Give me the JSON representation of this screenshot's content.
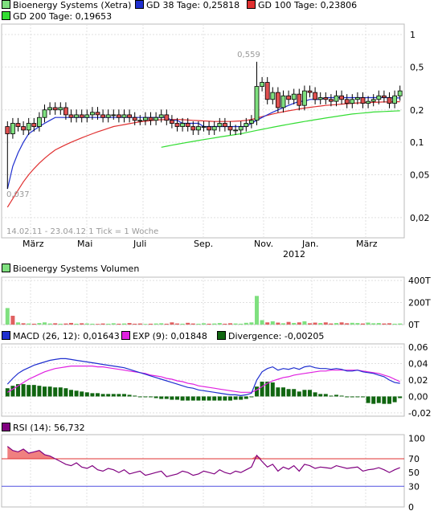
{
  "chart_data": [
    {
      "type": "candlestick",
      "legend": [
        {
          "label": "Bioenergy Systems (Xetra)",
          "color": "#7fe07f"
        },
        {
          "label": "GD 38 Tage: 0,25818",
          "color": "#1f2fcf"
        },
        {
          "label": "GD 100 Tage: 0,23806",
          "color": "#e03030"
        },
        {
          "label": "GD 200 Tage: 0,19653",
          "color": "#33dd33"
        }
      ],
      "y_scale": "log",
      "y_ticks": [
        "1",
        "0,5",
        "0,2",
        "0,1",
        "0,05",
        "0,02"
      ],
      "y_tick_values": [
        1,
        0.5,
        0.2,
        0.1,
        0.05,
        0.02
      ],
      "x_ticks": [
        "März",
        "Mai",
        "Juli",
        "Sep.",
        "Nov.",
        "Jan.",
        "März"
      ],
      "x_year_label": "2012",
      "annotations": {
        "high": "0,559",
        "low": "0,037"
      },
      "footer": "14.02.11 - 23.04.12   1 Tick = 1 Woche",
      "closes": [
        0.12,
        0.15,
        0.14,
        0.13,
        0.15,
        0.14,
        0.17,
        0.2,
        0.21,
        0.2,
        0.21,
        0.18,
        0.17,
        0.18,
        0.17,
        0.18,
        0.19,
        0.18,
        0.17,
        0.18,
        0.18,
        0.17,
        0.18,
        0.17,
        0.16,
        0.16,
        0.17,
        0.16,
        0.17,
        0.18,
        0.16,
        0.15,
        0.14,
        0.15,
        0.14,
        0.13,
        0.14,
        0.14,
        0.13,
        0.14,
        0.15,
        0.14,
        0.13,
        0.13,
        0.14,
        0.15,
        0.16,
        0.33,
        0.36,
        0.25,
        0.29,
        0.21,
        0.27,
        0.25,
        0.28,
        0.22,
        0.3,
        0.29,
        0.25,
        0.26,
        0.25,
        0.24,
        0.27,
        0.25,
        0.23,
        0.25,
        0.26,
        0.23,
        0.24,
        0.25,
        0.27,
        0.26,
        0.23,
        0.27,
        0.3
      ],
      "opens": [
        0.14,
        0.12,
        0.15,
        0.14,
        0.13,
        0.15,
        0.14,
        0.17,
        0.2,
        0.21,
        0.2,
        0.21,
        0.18,
        0.17,
        0.18,
        0.17,
        0.18,
        0.19,
        0.18,
        0.17,
        0.18,
        0.18,
        0.17,
        0.18,
        0.17,
        0.16,
        0.16,
        0.17,
        0.16,
        0.17,
        0.18,
        0.16,
        0.15,
        0.14,
        0.15,
        0.14,
        0.13,
        0.14,
        0.14,
        0.13,
        0.14,
        0.15,
        0.14,
        0.13,
        0.13,
        0.14,
        0.15,
        0.16,
        0.33,
        0.36,
        0.25,
        0.29,
        0.21,
        0.27,
        0.25,
        0.28,
        0.22,
        0.3,
        0.29,
        0.25,
        0.26,
        0.25,
        0.24,
        0.27,
        0.25,
        0.23,
        0.25,
        0.26,
        0.23,
        0.24,
        0.25,
        0.27,
        0.26,
        0.23,
        0.27
      ],
      "gd38": [
        0.037,
        0.06,
        0.08,
        0.1,
        0.12,
        0.13,
        0.14,
        0.15,
        0.16,
        0.17,
        0.17,
        0.17,
        0.17,
        0.17,
        0.17,
        0.17,
        0.17,
        0.17,
        0.17,
        0.17,
        0.17,
        0.17,
        0.17,
        0.17,
        0.17,
        0.17,
        0.17,
        0.17,
        0.17,
        0.17,
        0.17,
        0.16,
        0.16,
        0.15,
        0.15,
        0.15,
        0.15,
        0.14,
        0.14,
        0.14,
        0.14,
        0.14,
        0.14,
        0.14,
        0.14,
        0.14,
        0.15,
        0.16,
        0.17,
        0.18,
        0.19,
        0.2,
        0.21,
        0.22,
        0.23,
        0.24,
        0.24,
        0.25,
        0.25,
        0.25,
        0.26,
        0.26,
        0.26,
        0.26,
        0.26,
        0.26,
        0.26,
        0.26,
        0.26,
        0.26,
        0.26,
        0.26,
        0.26,
        0.258,
        0.258
      ],
      "gd100": [
        0.025,
        0.03,
        0.036,
        0.043,
        0.05,
        0.057,
        0.064,
        0.071,
        0.078,
        0.085,
        0.09,
        0.095,
        0.1,
        0.105,
        0.11,
        0.115,
        0.12,
        0.125,
        0.13,
        0.135,
        0.14,
        0.143,
        0.146,
        0.149,
        0.152,
        0.155,
        0.157,
        0.159,
        0.161,
        0.162,
        0.163,
        0.163,
        0.163,
        0.162,
        0.161,
        0.16,
        0.159,
        0.158,
        0.157,
        0.156,
        0.156,
        0.156,
        0.156,
        0.157,
        0.158,
        0.16,
        0.163,
        0.168,
        0.173,
        0.178,
        0.183,
        0.188,
        0.192,
        0.196,
        0.2,
        0.204,
        0.208,
        0.211,
        0.214,
        0.217,
        0.22,
        0.222,
        0.224,
        0.226,
        0.228,
        0.23,
        0.232,
        0.233,
        0.234,
        0.235,
        0.236,
        0.237,
        0.237,
        0.238,
        0.238
      ],
      "gd200_start_index": 29,
      "gd200": [
        0.09,
        0.092,
        0.094,
        0.096,
        0.098,
        0.1,
        0.102,
        0.104,
        0.106,
        0.108,
        0.11,
        0.112,
        0.114,
        0.116,
        0.118,
        0.12,
        0.123,
        0.126,
        0.129,
        0.132,
        0.135,
        0.138,
        0.141,
        0.144,
        0.147,
        0.15,
        0.153,
        0.156,
        0.159,
        0.162,
        0.165,
        0.168,
        0.171,
        0.174,
        0.177,
        0.18,
        0.183,
        0.185,
        0.187,
        0.189,
        0.191,
        0.192,
        0.193,
        0.194,
        0.195,
        0.196
      ]
    },
    {
      "type": "bar",
      "legend": [
        {
          "label": "Bioenergy Systems Volumen",
          "color": "#7fe07f"
        }
      ],
      "y_ticks": [
        "400T",
        "200T",
        "0T"
      ],
      "y_tick_values": [
        400,
        200,
        0
      ],
      "values": [
        150,
        80,
        20,
        12,
        10,
        8,
        14,
        20,
        10,
        12,
        8,
        10,
        15,
        8,
        12,
        10,
        8,
        6,
        10,
        8,
        12,
        8,
        10,
        14,
        8,
        10,
        6,
        8,
        10,
        12,
        8,
        20,
        10,
        8,
        16,
        10,
        8,
        12,
        8,
        10,
        14,
        8,
        12,
        10,
        8,
        16,
        20,
        260,
        40,
        20,
        30,
        18,
        12,
        24,
        15,
        20,
        30,
        12,
        18,
        14,
        20,
        10,
        14,
        20,
        12,
        16,
        14,
        10,
        18,
        12,
        14,
        10,
        12,
        8,
        10
      ],
      "up": [
        true,
        false,
        true,
        false,
        true,
        false,
        true,
        true,
        true,
        false,
        true,
        false,
        false,
        true,
        false,
        true,
        true,
        false,
        false,
        true,
        true,
        false,
        true,
        false,
        false,
        false,
        true,
        false,
        true,
        true,
        false,
        false,
        false,
        true,
        false,
        false,
        true,
        true,
        false,
        true,
        true,
        false,
        false,
        true,
        true,
        true,
        true,
        true,
        true,
        false,
        true,
        false,
        true,
        false,
        true,
        false,
        true,
        false,
        false,
        true,
        false,
        false,
        true,
        false,
        false,
        true,
        true,
        false,
        true,
        true,
        true,
        false,
        false,
        true,
        true
      ]
    },
    {
      "type": "line",
      "legend": [
        {
          "label": "MACD (26, 12): 0,01643",
          "color": "#1f2fcf"
        },
        {
          "label": "EXP (9): 0,01848",
          "color": "#e020e0"
        },
        {
          "label": "Divergence: -0,00205",
          "color": "#116611"
        }
      ],
      "y_ticks": [
        "0,06",
        "0,04",
        "0,02",
        "0,00",
        "-0,02"
      ],
      "y_tick_values": [
        0.06,
        0.04,
        0.02,
        0.0,
        -0.02
      ],
      "macd": [
        0.015,
        0.022,
        0.028,
        0.032,
        0.035,
        0.038,
        0.04,
        0.042,
        0.044,
        0.045,
        0.046,
        0.046,
        0.045,
        0.044,
        0.043,
        0.042,
        0.041,
        0.04,
        0.039,
        0.038,
        0.037,
        0.036,
        0.035,
        0.033,
        0.031,
        0.029,
        0.027,
        0.025,
        0.023,
        0.021,
        0.019,
        0.017,
        0.015,
        0.013,
        0.011,
        0.01,
        0.008,
        0.007,
        0.006,
        0.005,
        0.004,
        0.003,
        0.002,
        0.002,
        0.001,
        0.002,
        0.004,
        0.02,
        0.03,
        0.034,
        0.036,
        0.032,
        0.034,
        0.033,
        0.035,
        0.033,
        0.036,
        0.037,
        0.035,
        0.034,
        0.034,
        0.033,
        0.034,
        0.033,
        0.031,
        0.031,
        0.032,
        0.03,
        0.029,
        0.028,
        0.026,
        0.024,
        0.02,
        0.017,
        0.016
      ],
      "exp": [
        0.005,
        0.009,
        0.013,
        0.017,
        0.021,
        0.024,
        0.027,
        0.03,
        0.032,
        0.034,
        0.035,
        0.036,
        0.037,
        0.037,
        0.037,
        0.037,
        0.037,
        0.036,
        0.036,
        0.035,
        0.034,
        0.033,
        0.032,
        0.031,
        0.03,
        0.029,
        0.028,
        0.026,
        0.025,
        0.024,
        0.022,
        0.021,
        0.019,
        0.018,
        0.016,
        0.015,
        0.013,
        0.012,
        0.011,
        0.01,
        0.009,
        0.008,
        0.007,
        0.006,
        0.005,
        0.005,
        0.005,
        0.008,
        0.012,
        0.016,
        0.019,
        0.021,
        0.023,
        0.024,
        0.026,
        0.027,
        0.028,
        0.029,
        0.03,
        0.031,
        0.031,
        0.032,
        0.032,
        0.032,
        0.032,
        0.032,
        0.032,
        0.031,
        0.03,
        0.029,
        0.028,
        0.026,
        0.024,
        0.021,
        0.018
      ],
      "divergence": [
        0.01,
        0.013,
        0.015,
        0.015,
        0.014,
        0.014,
        0.013,
        0.012,
        0.012,
        0.011,
        0.011,
        0.01,
        0.008,
        0.007,
        0.006,
        0.005,
        0.004,
        0.004,
        0.003,
        0.003,
        0.003,
        0.003,
        0.003,
        0.002,
        0.001,
        0.0,
        -0.001,
        -0.001,
        -0.002,
        -0.003,
        -0.003,
        -0.004,
        -0.004,
        -0.005,
        -0.005,
        -0.005,
        -0.005,
        -0.005,
        -0.005,
        -0.005,
        -0.005,
        -0.005,
        -0.005,
        -0.004,
        -0.004,
        -0.003,
        -0.001,
        0.012,
        0.018,
        0.018,
        0.017,
        0.011,
        0.011,
        0.009,
        0.009,
        0.006,
        0.008,
        0.008,
        0.005,
        0.003,
        0.003,
        0.001,
        0.002,
        0.001,
        -0.001,
        -0.001,
        0.0,
        -0.001,
        -0.008,
        -0.009,
        -0.008,
        -0.009,
        -0.009,
        -0.007,
        -0.002
      ]
    },
    {
      "type": "line",
      "legend": [
        {
          "label": "RSI (14): 56,732",
          "color": "#800080"
        }
      ],
      "y_ticks": [
        "100",
        "70",
        "50",
        "30",
        "0"
      ],
      "y_tick_values": [
        100,
        70,
        50,
        30,
        0
      ],
      "overbought": 70,
      "oversold": 30,
      "values": [
        88,
        82,
        80,
        84,
        78,
        80,
        82,
        76,
        74,
        70,
        66,
        62,
        60,
        64,
        58,
        56,
        60,
        54,
        52,
        56,
        54,
        50,
        54,
        48,
        50,
        52,
        46,
        48,
        50,
        52,
        44,
        46,
        48,
        52,
        50,
        46,
        48,
        52,
        50,
        48,
        54,
        50,
        48,
        52,
        50,
        54,
        58,
        75,
        66,
        58,
        62,
        52,
        58,
        55,
        60,
        52,
        62,
        60,
        56,
        58,
        57,
        56,
        60,
        58,
        56,
        57,
        58,
        52,
        54,
        55,
        57,
        54,
        50,
        54,
        57
      ]
    }
  ]
}
